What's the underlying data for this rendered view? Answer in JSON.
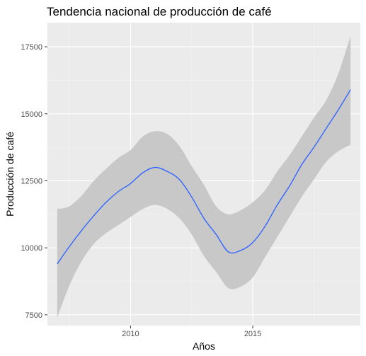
{
  "chart_data": {
    "type": "line",
    "title": "Tendencia nacional de producción de café",
    "xlabel": "Años",
    "ylabel": "Producción de café",
    "xlim": [
      2006.6,
      2019.4
    ],
    "ylim": [
      7100,
      18400
    ],
    "x_ticks": [
      {
        "value": 2010,
        "label": "2010"
      },
      {
        "value": 2015,
        "label": "2015"
      }
    ],
    "y_ticks": [
      {
        "value": 7500,
        "label": "7500"
      },
      {
        "value": 10000,
        "label": "10000"
      },
      {
        "value": 12500,
        "label": "12500"
      },
      {
        "value": 15000,
        "label": "15000"
      },
      {
        "value": 17500,
        "label": "17500"
      }
    ],
    "grid": true,
    "series": [
      {
        "color": "#3366ff",
        "band_color": "#c8c8c8",
        "x": [
          2007.0,
          2007.5,
          2008.0,
          2008.5,
          2009.0,
          2009.5,
          2010.0,
          2010.5,
          2011.0,
          2011.5,
          2012.0,
          2012.5,
          2013.0,
          2013.5,
          2014.0,
          2014.5,
          2015.0,
          2015.5,
          2016.0,
          2016.5,
          2017.0,
          2017.5,
          2018.0,
          2018.5,
          2019.0
        ],
        "y": [
          9400,
          10050,
          10650,
          11200,
          11700,
          12100,
          12400,
          12800,
          13000,
          12850,
          12550,
          11900,
          11100,
          10500,
          9850,
          9900,
          10200,
          10800,
          11600,
          12300,
          13100,
          13750,
          14450,
          15150,
          15900
        ],
        "lower": [
          7400,
          8600,
          9500,
          10150,
          10550,
          10850,
          11150,
          11450,
          11600,
          11450,
          11100,
          10500,
          9700,
          9100,
          8500,
          8550,
          8900,
          9650,
          10400,
          11150,
          11900,
          12550,
          13200,
          13600,
          13850
        ],
        "upper": [
          11450,
          11550,
          11950,
          12500,
          12950,
          13350,
          13650,
          14150,
          14350,
          14250,
          13800,
          13050,
          12350,
          11550,
          11250,
          11400,
          11700,
          12150,
          12850,
          13450,
          14150,
          14850,
          15500,
          16500,
          17900
        ]
      }
    ]
  }
}
